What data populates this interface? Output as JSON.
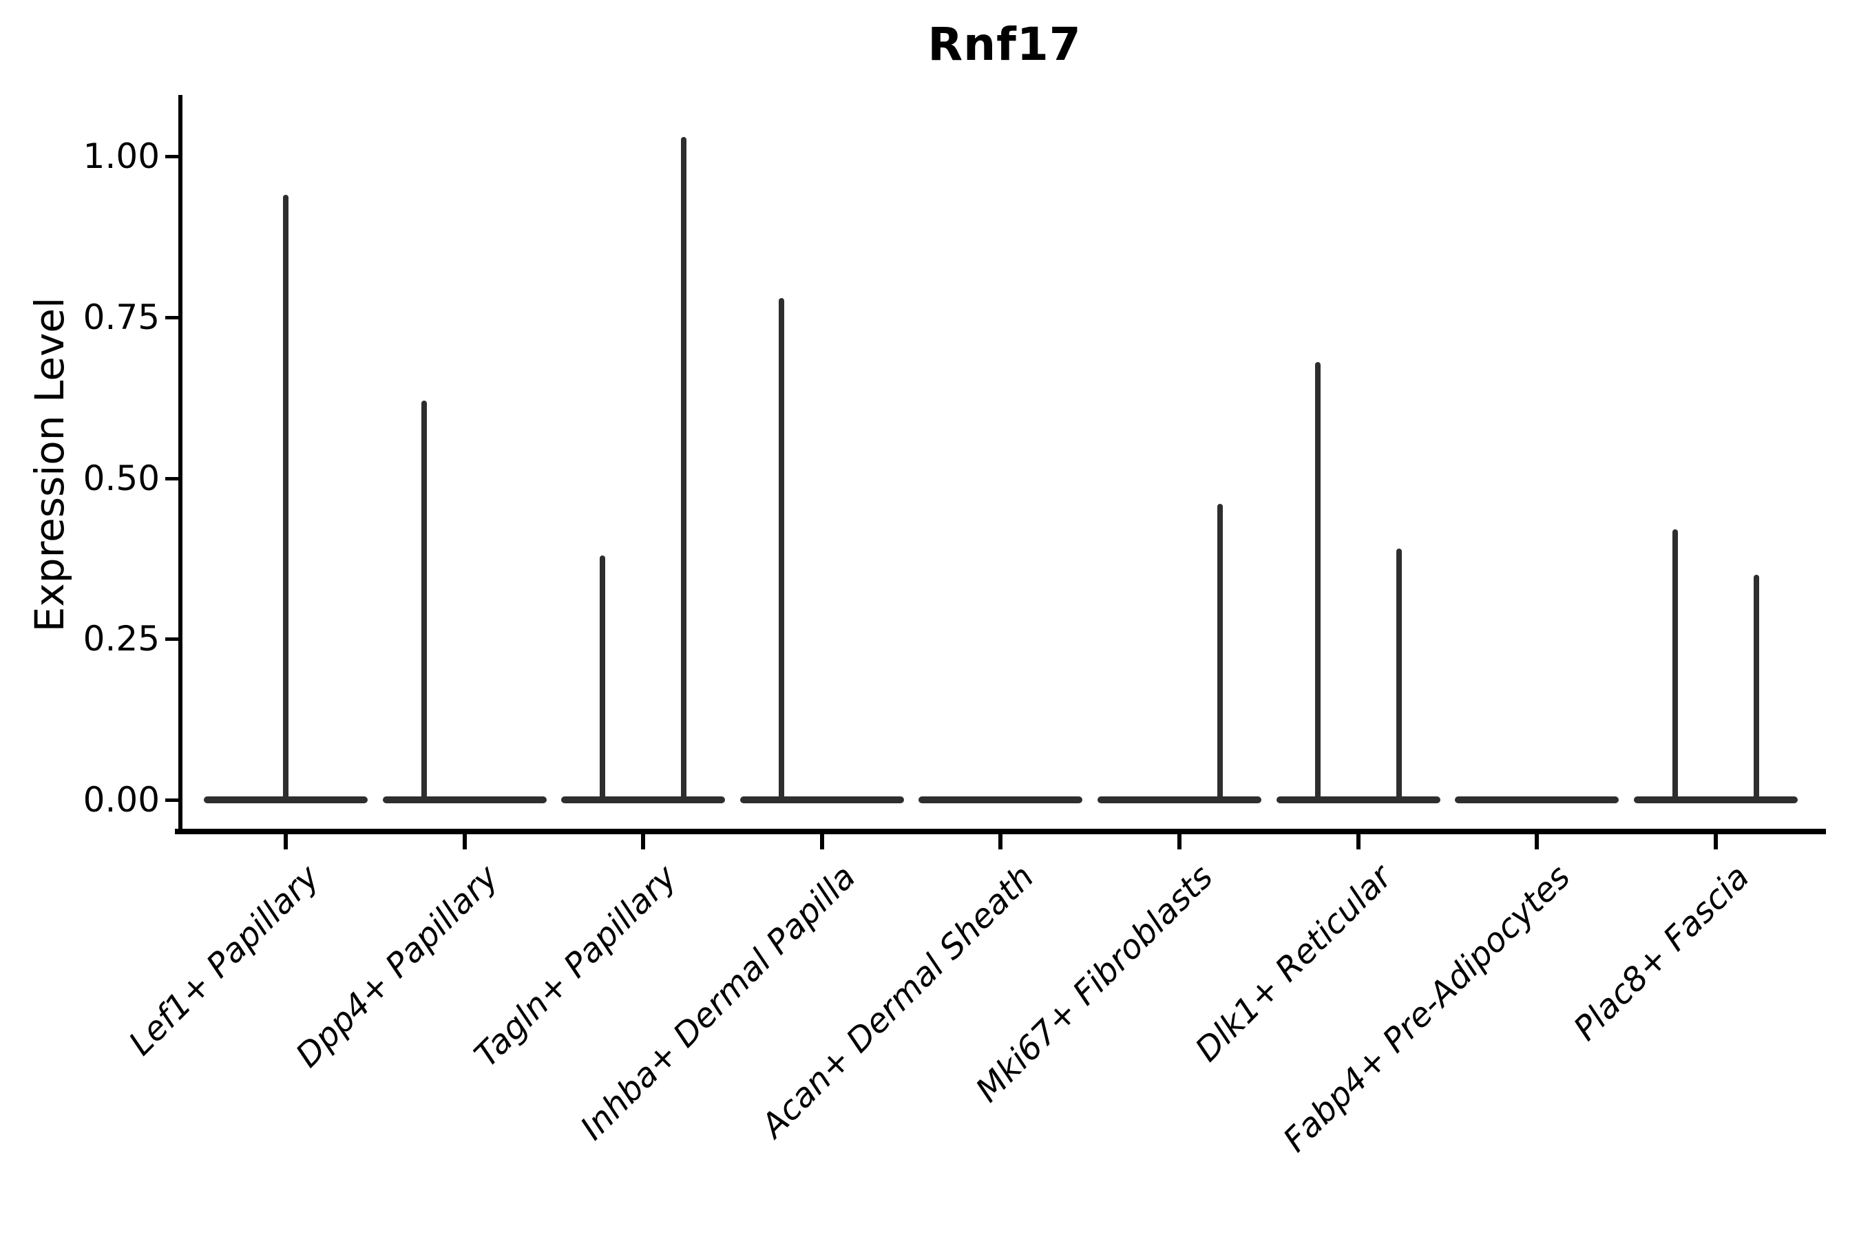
{
  "title": "Rnf17",
  "y_axis": {
    "label": "Expression Level",
    "tick_labels": [
      "1.00",
      "0.75",
      "0.50",
      "0.25",
      "0.00"
    ],
    "tick_values": [
      1.0,
      0.75,
      0.5,
      0.25,
      0.0
    ]
  },
  "colors": {
    "violin": "#2e2e2e",
    "axis": "#000000",
    "text": "#000000",
    "background": "#ffffff"
  },
  "chart_data": {
    "type": "violin",
    "title": "Rnf17",
    "xlabel": "",
    "ylabel": "Expression Level",
    "ylim": [
      0,
      1.08
    ],
    "yticks": [
      0.0,
      0.25,
      0.5,
      0.75,
      1.0
    ],
    "grid": false,
    "legend": "none",
    "description": "Expression nearly all zero in every cluster; each violin is a flat pancake at 0 with thin spikes rising to the maximum expressing cell. Categories with two dodged sub-violins show spikes offset left/right of the category center.",
    "categories": [
      "Lef1+ Papillary",
      "Dpp4+ Papillary",
      "Tagln+ Papillary",
      "Inhba+ Dermal Papilla",
      "Acan+ Dermal Sheath",
      "Mki67+ Fibroblasts",
      "Dlk1+ Reticular",
      "Fabp4+ Pre-Adipocytes",
      "Plac8+ Fascia"
    ],
    "violins": [
      {
        "category": "Lef1+ Papillary",
        "baseline": 0.0,
        "spikes": [
          {
            "position": "center",
            "max": 0.94
          }
        ]
      },
      {
        "category": "Dpp4+ Papillary",
        "baseline": 0.0,
        "spikes": [
          {
            "position": "left",
            "max": 0.62
          }
        ]
      },
      {
        "category": "Tagln+ Papillary",
        "baseline": 0.0,
        "spikes": [
          {
            "position": "left",
            "max": 0.38
          },
          {
            "position": "right",
            "max": 1.03
          }
        ]
      },
      {
        "category": "Inhba+ Dermal Papilla",
        "baseline": 0.0,
        "spikes": [
          {
            "position": "left",
            "max": 0.78
          }
        ]
      },
      {
        "category": "Acan+ Dermal Sheath",
        "baseline": 0.0,
        "spikes": []
      },
      {
        "category": "Mki67+ Fibroblasts",
        "baseline": 0.0,
        "spikes": [
          {
            "position": "right",
            "max": 0.46
          }
        ]
      },
      {
        "category": "Dlk1+ Reticular",
        "baseline": 0.0,
        "spikes": [
          {
            "position": "left",
            "max": 0.68
          },
          {
            "position": "right",
            "max": 0.39
          }
        ]
      },
      {
        "category": "Fabp4+ Pre-Adipocytes",
        "baseline": 0.0,
        "spikes": []
      },
      {
        "category": "Plac8+ Fascia",
        "baseline": 0.0,
        "spikes": [
          {
            "position": "left",
            "max": 0.42
          },
          {
            "position": "right",
            "max": 0.35
          }
        ]
      }
    ]
  }
}
